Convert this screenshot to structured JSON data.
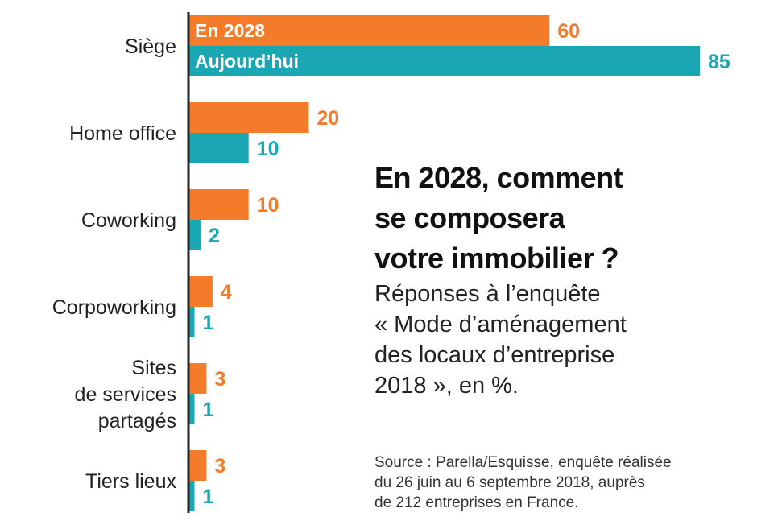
{
  "chart_data": {
    "type": "bar",
    "orientation": "horizontal",
    "categories": [
      "Siège",
      "Home office",
      "Coworking",
      "Corpoworking",
      "Sites de services partagés",
      "Tiers lieux"
    ],
    "category_lines": [
      [
        "Siège"
      ],
      [
        "Home office"
      ],
      [
        "Coworking"
      ],
      [
        "Corpoworking"
      ],
      [
        "Sites",
        "de services",
        "partagés"
      ],
      [
        "Tiers lieux"
      ]
    ],
    "series": [
      {
        "name": "En 2028",
        "color": "#f47b2a",
        "values": [
          60,
          20,
          10,
          4,
          3,
          3
        ]
      },
      {
        "name": "Aujourd’hui",
        "color": "#1aa6b3",
        "values": [
          85,
          10,
          2,
          1,
          1,
          1
        ]
      }
    ],
    "value_labels": [
      [
        "60",
        "20",
        "10",
        "4",
        "3",
        "3"
      ],
      [
        "85",
        "10",
        "2",
        "1",
        "1",
        "1"
      ]
    ],
    "title": [
      "En 2028, comment",
      "se composera",
      "votre immobilier ?"
    ],
    "subtitle": [
      "Réponses à l’enquête",
      "« Mode d’aménagement",
      "des locaux d’entreprise",
      "2018 », en %."
    ],
    "source": [
      "Source : Parella/Esquisse, enquête réalisée",
      "du 26 juin au 6 septembre 2018, auprès",
      "de 212 entreprises en France."
    ],
    "xlim": [
      0,
      85
    ],
    "legend_placement": "inside-first-bars",
    "grid": false
  }
}
